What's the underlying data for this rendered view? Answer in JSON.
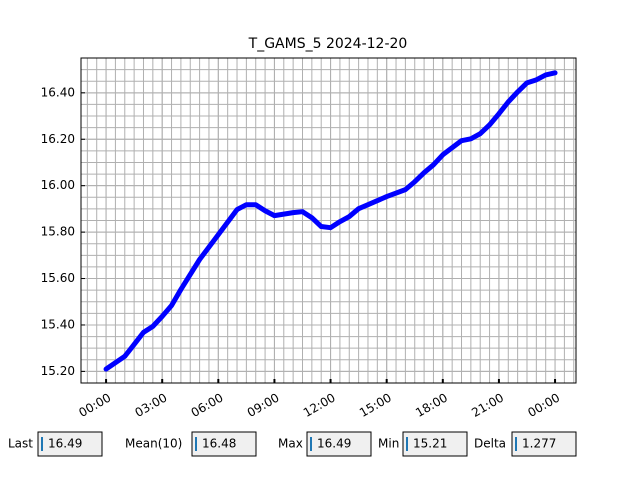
{
  "chart_data": {
    "type": "line",
    "title": "T_GAMS_5 2024-12-20",
    "x": [
      0,
      1,
      1.5,
      2,
      2.5,
      3,
      3.5,
      4,
      5,
      6,
      7,
      7.5,
      8,
      8.5,
      9,
      10,
      10.5,
      11,
      11.5,
      12,
      12.5,
      13,
      13.5,
      14,
      15,
      16,
      16.5,
      17,
      17.5,
      18,
      19,
      19.5,
      20,
      20.5,
      21,
      21.5,
      22,
      22.5,
      23,
      23.5,
      24
    ],
    "series": [
      {
        "color": "#0000ff",
        "values": [
          15.21,
          15.265,
          15.316,
          15.368,
          15.394,
          15.437,
          15.484,
          15.553,
          15.682,
          15.789,
          15.897,
          15.918,
          15.918,
          15.892,
          15.871,
          15.884,
          15.888,
          15.862,
          15.824,
          15.819,
          15.845,
          15.867,
          15.901,
          15.918,
          15.953,
          15.983,
          16.017,
          16.056,
          16.09,
          16.133,
          16.194,
          16.202,
          16.224,
          16.262,
          16.31,
          16.361,
          16.404,
          16.443,
          16.456,
          16.477,
          16.486
        ]
      }
    ],
    "xlim": [
      -1.34,
      25.12
    ],
    "ylim": [
      15.15,
      16.55
    ],
    "xticks": [
      {
        "value": 0,
        "label": "00:00"
      },
      {
        "value": 3,
        "label": "03:00"
      },
      {
        "value": 6,
        "label": "06:00"
      },
      {
        "value": 9,
        "label": "09:00"
      },
      {
        "value": 12,
        "label": "12:00"
      },
      {
        "value": 15,
        "label": "15:00"
      },
      {
        "value": 18,
        "label": "18:00"
      },
      {
        "value": 21,
        "label": "21:00"
      },
      {
        "value": 24,
        "label": "00:00"
      }
    ],
    "yticks": [
      {
        "value": 15.2,
        "label": "15.20"
      },
      {
        "value": 15.4,
        "label": "15.40"
      },
      {
        "value": 15.6,
        "label": "15.60"
      },
      {
        "value": 15.8,
        "label": "15.80"
      },
      {
        "value": 16.0,
        "label": "16.00"
      },
      {
        "value": 16.2,
        "label": "16.20"
      },
      {
        "value": 16.4,
        "label": "16.40"
      }
    ],
    "grid": true,
    "minor_grid": {
      "x_step": 0.5,
      "y_step": 0.05
    }
  },
  "widgets": [
    {
      "label": "Last",
      "value": "16.49"
    },
    {
      "label": "Mean(10)",
      "value": "16.48"
    },
    {
      "label": "Max",
      "value": "16.49"
    },
    {
      "label": "Min",
      "value": "15.21"
    },
    {
      "label": "Delta",
      "value": "1.277"
    }
  ]
}
